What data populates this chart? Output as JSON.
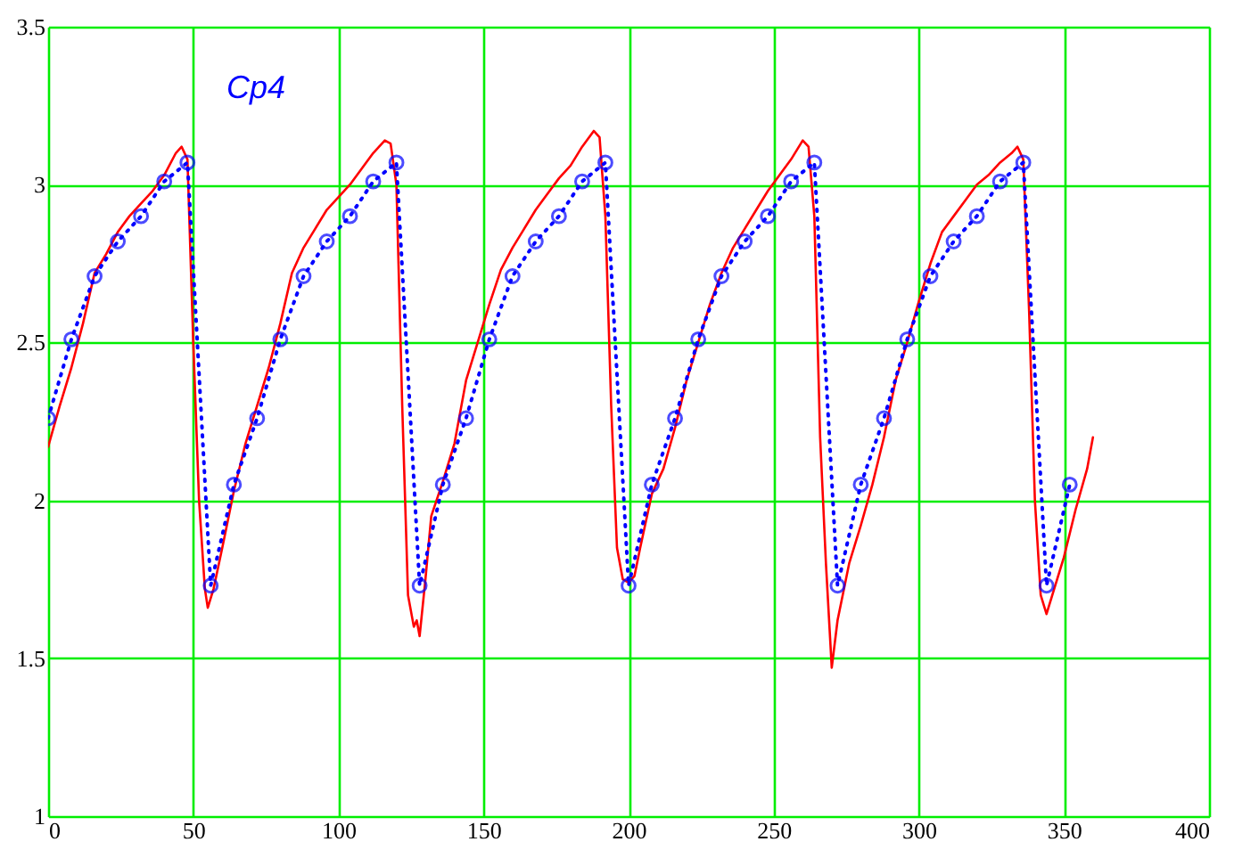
{
  "chart_data": {
    "type": "line",
    "title": "Cp4",
    "xlim": [
      0,
      400
    ],
    "ylim": [
      1,
      3.5
    ],
    "xticks": [
      0,
      50,
      100,
      150,
      200,
      250,
      300,
      350,
      400
    ],
    "yticks": [
      1,
      1.5,
      2,
      2.5,
      3,
      3.5
    ],
    "grid": true,
    "series": [
      {
        "color": "#ff0000",
        "marker": "none",
        "line_style": "solid",
        "x": [
          0,
          4,
          8,
          12,
          16,
          20,
          24,
          28,
          32,
          36,
          40,
          44,
          46,
          48,
          50,
          52,
          54,
          55,
          57,
          60,
          64,
          68,
          72,
          76,
          80,
          84,
          88,
          92,
          96,
          100,
          104,
          108,
          112,
          116,
          118,
          120,
          122,
          124,
          126,
          127,
          128,
          130,
          132,
          136,
          140,
          144,
          148,
          152,
          156,
          160,
          164,
          168,
          172,
          176,
          180,
          184,
          188,
          190,
          192,
          194,
          196,
          198,
          200,
          202,
          204,
          208,
          212,
          216,
          220,
          224,
          228,
          232,
          236,
          240,
          244,
          248,
          252,
          256,
          260,
          262,
          264,
          266,
          268,
          270,
          272,
          276,
          280,
          284,
          288,
          292,
          296,
          300,
          304,
          308,
          312,
          316,
          320,
          324,
          328,
          332,
          334,
          336,
          338,
          340,
          342,
          344,
          346,
          350,
          354,
          358,
          360
        ],
        "values": [
          2.17,
          2.3,
          2.42,
          2.56,
          2.72,
          2.78,
          2.85,
          2.9,
          2.94,
          2.98,
          3.03,
          3.1,
          3.12,
          3.08,
          2.5,
          2.0,
          1.72,
          1.66,
          1.72,
          1.85,
          2.03,
          2.18,
          2.3,
          2.42,
          2.56,
          2.72,
          2.8,
          2.86,
          2.92,
          2.96,
          3.0,
          3.05,
          3.1,
          3.14,
          3.13,
          3.0,
          2.3,
          1.7,
          1.6,
          1.62,
          1.57,
          1.75,
          1.95,
          2.06,
          2.18,
          2.38,
          2.5,
          2.62,
          2.73,
          2.8,
          2.86,
          2.92,
          2.97,
          3.02,
          3.06,
          3.12,
          3.17,
          3.15,
          2.9,
          2.3,
          1.85,
          1.75,
          1.74,
          1.76,
          1.85,
          2.02,
          2.1,
          2.23,
          2.38,
          2.5,
          2.62,
          2.72,
          2.8,
          2.86,
          2.92,
          2.98,
          3.03,
          3.08,
          3.14,
          3.12,
          2.9,
          2.2,
          1.8,
          1.47,
          1.62,
          1.8,
          1.92,
          2.05,
          2.2,
          2.38,
          2.5,
          2.63,
          2.75,
          2.85,
          2.9,
          2.95,
          3.0,
          3.03,
          3.07,
          3.1,
          3.12,
          3.08,
          2.6,
          2.0,
          1.7,
          1.64,
          1.7,
          1.82,
          1.97,
          2.1,
          2.2
        ]
      },
      {
        "color": "#0000ff",
        "marker": "circle",
        "line_style": "dotted",
        "x": [
          0,
          8,
          16,
          24,
          32,
          40,
          48,
          56,
          64,
          72,
          80,
          88,
          96,
          104,
          112,
          120,
          128,
          136,
          144,
          152,
          160,
          168,
          176,
          184,
          192,
          200,
          208,
          216,
          224,
          232,
          240,
          248,
          256,
          264,
          272,
          280,
          288,
          296,
          304,
          312,
          320,
          328,
          336,
          344,
          352
        ],
        "values": [
          2.26,
          2.51,
          2.71,
          2.82,
          2.9,
          3.01,
          3.07,
          1.73,
          2.05,
          2.26,
          2.51,
          2.71,
          2.82,
          2.9,
          3.01,
          3.07,
          1.73,
          2.05,
          2.26,
          2.51,
          2.71,
          2.82,
          2.9,
          3.01,
          3.07,
          1.73,
          2.05,
          2.26,
          2.51,
          2.71,
          2.82,
          2.9,
          3.01,
          3.07,
          1.73,
          2.05,
          2.26,
          2.51,
          2.71,
          2.82,
          2.9,
          3.01,
          3.07,
          1.73,
          2.05
        ]
      }
    ]
  }
}
